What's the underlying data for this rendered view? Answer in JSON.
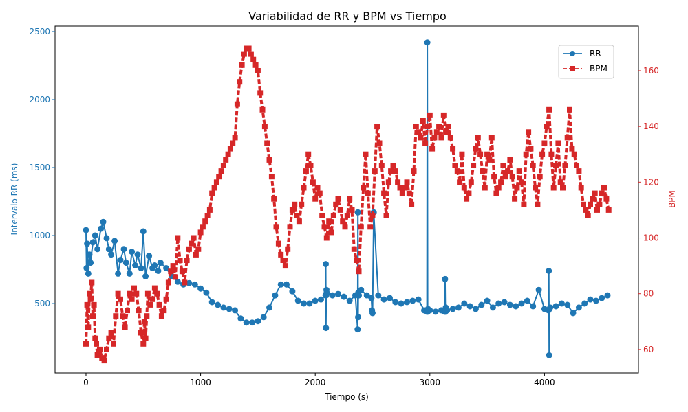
{
  "chart_data": {
    "type": "line",
    "title": "Variabilidad de RR y BPM vs Tiempo",
    "xlabel": "Tiempo (s)",
    "ylabel_left": "Intervalo RR (ms)",
    "ylabel_right": "BPM",
    "xlim": [
      -270,
      4820
    ],
    "ylim_left": [
      -10,
      2540
    ],
    "ylim_right": [
      51.6,
      176
    ],
    "x_ticks": [
      0,
      1000,
      2000,
      3000,
      4000
    ],
    "y_ticks_left": [
      500,
      1000,
      1500,
      2000,
      2500
    ],
    "y_ticks_right": [
      60,
      80,
      100,
      120,
      140,
      160
    ],
    "legend_position": "top-right",
    "grid": false,
    "colors": {
      "rr": "#1f77b4",
      "bpm": "#d62728",
      "text": "#000000"
    },
    "series": [
      {
        "name": "RR",
        "axis": "left",
        "marker": "circle",
        "linestyle": "solid",
        "x": [
          0,
          5,
          10,
          20,
          30,
          40,
          60,
          80,
          100,
          130,
          150,
          180,
          200,
          220,
          250,
          280,
          300,
          330,
          350,
          380,
          400,
          430,
          450,
          480,
          500,
          520,
          550,
          580,
          600,
          630,
          650,
          700,
          750,
          800,
          850,
          900,
          950,
          1000,
          1050,
          1100,
          1150,
          1200,
          1250,
          1300,
          1350,
          1400,
          1450,
          1500,
          1550,
          1600,
          1650,
          1700,
          1750,
          1800,
          1850,
          1900,
          1950,
          2000,
          2050,
          2090,
          2092,
          2094,
          2096,
          2098,
          2100,
          2150,
          2200,
          2250,
          2300,
          2350,
          2370,
          2372,
          2374,
          2376,
          2380,
          2400,
          2450,
          2490,
          2495,
          2500,
          2510,
          2550,
          2600,
          2650,
          2700,
          2750,
          2800,
          2850,
          2900,
          2950,
          2975,
          2978,
          2981,
          2984,
          3000,
          3050,
          3100,
          3130,
          3133,
          3136,
          3139,
          3150,
          3200,
          3250,
          3300,
          3350,
          3400,
          3450,
          3500,
          3550,
          3600,
          3650,
          3700,
          3750,
          3800,
          3850,
          3900,
          3950,
          4000,
          4035,
          4038,
          4041,
          4044,
          4050,
          4100,
          4150,
          4200,
          4250,
          4300,
          4350,
          4400,
          4450,
          4500,
          4550
        ],
        "y": [
          1040,
          760,
          940,
          720,
          860,
          800,
          950,
          1000,
          900,
          1050,
          1100,
          980,
          900,
          860,
          960,
          720,
          820,
          900,
          800,
          720,
          880,
          780,
          860,
          760,
          1030,
          700,
          850,
          760,
          780,
          740,
          800,
          760,
          700,
          660,
          640,
          650,
          640,
          610,
          580,
          510,
          490,
          470,
          460,
          450,
          390,
          360,
          360,
          370,
          400,
          470,
          560,
          640,
          640,
          590,
          520,
          500,
          500,
          520,
          530,
          560,
          790,
          320,
          560,
          600,
          580,
          560,
          570,
          550,
          520,
          560,
          310,
          1170,
          400,
          580,
          560,
          600,
          560,
          540,
          450,
          430,
          1170,
          560,
          530,
          540,
          510,
          500,
          510,
          520,
          530,
          450,
          440,
          2420,
          440,
          460,
          450,
          440,
          450,
          440,
          680,
          440,
          470,
          450,
          460,
          470,
          500,
          480,
          460,
          490,
          520,
          470,
          500,
          510,
          490,
          480,
          500,
          520,
          480,
          600,
          460,
          450,
          740,
          120,
          460,
          470,
          480,
          500,
          490,
          430,
          470,
          500,
          530,
          520,
          540,
          560
        ]
      },
      {
        "name": "BPM",
        "axis": "right",
        "marker": "square",
        "linestyle": "dashed",
        "x": [
          0,
          10,
          20,
          30,
          40,
          50,
          60,
          70,
          80,
          90,
          100,
          120,
          140,
          160,
          180,
          200,
          220,
          240,
          260,
          280,
          300,
          320,
          340,
          360,
          380,
          400,
          420,
          440,
          460,
          480,
          500,
          510,
          520,
          530,
          540,
          560,
          580,
          600,
          620,
          640,
          660,
          680,
          700,
          720,
          740,
          760,
          780,
          800,
          820,
          840,
          860,
          880,
          900,
          920,
          940,
          960,
          980,
          1000,
          1020,
          1040,
          1060,
          1080,
          1100,
          1120,
          1140,
          1160,
          1180,
          1200,
          1220,
          1240,
          1260,
          1280,
          1300,
          1320,
          1340,
          1360,
          1380,
          1400,
          1420,
          1440,
          1460,
          1480,
          1500,
          1520,
          1540,
          1560,
          1580,
          1600,
          1620,
          1640,
          1660,
          1680,
          1700,
          1720,
          1740,
          1760,
          1780,
          1800,
          1820,
          1840,
          1860,
          1880,
          1900,
          1920,
          1940,
          1960,
          1980,
          2000,
          2020,
          2040,
          2060,
          2080,
          2100,
          2120,
          2140,
          2160,
          2180,
          2200,
          2220,
          2240,
          2260,
          2280,
          2300,
          2320,
          2340,
          2360,
          2380,
          2400,
          2420,
          2440,
          2460,
          2480,
          2500,
          2520,
          2540,
          2560,
          2580,
          2600,
          2620,
          2640,
          2660,
          2680,
          2700,
          2720,
          2740,
          2760,
          2780,
          2800,
          2820,
          2840,
          2860,
          2880,
          2900,
          2920,
          2940,
          2960,
          2980,
          3000,
          3020,
          3040,
          3060,
          3080,
          3100,
          3120,
          3140,
          3160,
          3180,
          3200,
          3220,
          3240,
          3260,
          3280,
          3300,
          3320,
          3340,
          3360,
          3380,
          3400,
          3420,
          3440,
          3460,
          3480,
          3500,
          3520,
          3540,
          3560,
          3580,
          3600,
          3620,
          3640,
          3660,
          3680,
          3700,
          3720,
          3740,
          3760,
          3780,
          3800,
          3820,
          3840,
          3860,
          3880,
          3900,
          3920,
          3940,
          3960,
          3980,
          4000,
          4020,
          4040,
          4060,
          4080,
          4100,
          4120,
          4140,
          4160,
          4180,
          4200,
          4220,
          4240,
          4260,
          4280,
          4300,
          4320,
          4340,
          4360,
          4380,
          4400,
          4420,
          4440,
          4460,
          4480,
          4500,
          4520,
          4540,
          4560
        ],
        "y": [
          62,
          76,
          68,
          80,
          78,
          84,
          72,
          76,
          64,
          62,
          58,
          60,
          57,
          56,
          60,
          64,
          66,
          62,
          72,
          80,
          78,
          72,
          68,
          74,
          80,
          78,
          82,
          80,
          74,
          66,
          62,
          70,
          64,
          72,
          80,
          76,
          78,
          82,
          80,
          76,
          72,
          74,
          78,
          84,
          88,
          90,
          86,
          100,
          92,
          88,
          84,
          92,
          96,
          98,
          100,
          94,
          96,
          102,
          104,
          106,
          108,
          110,
          116,
          118,
          120,
          122,
          124,
          126,
          128,
          130,
          132,
          134,
          136,
          148,
          156,
          162,
          166,
          168,
          168,
          166,
          164,
          162,
          160,
          152,
          146,
          140,
          134,
          128,
          122,
          114,
          104,
          98,
          94,
          92,
          90,
          96,
          104,
          110,
          112,
          108,
          106,
          112,
          118,
          124,
          130,
          126,
          120,
          114,
          118,
          116,
          108,
          104,
          100,
          106,
          102,
          108,
          112,
          114,
          110,
          106,
          104,
          108,
          114,
          110,
          96,
          92,
          88,
          104,
          118,
          130,
          116,
          104,
          108,
          124,
          140,
          134,
          126,
          116,
          108,
          120,
          124,
          126,
          124,
          120,
          118,
          116,
          118,
          120,
          116,
          112,
          124,
          140,
          138,
          136,
          142,
          134,
          140,
          144,
          132,
          136,
          138,
          140,
          136,
          144,
          138,
          140,
          136,
          132,
          126,
          124,
          120,
          130,
          118,
          114,
          116,
          120,
          126,
          132,
          136,
          130,
          124,
          118,
          130,
          128,
          136,
          122,
          116,
          118,
          120,
          126,
          122,
          124,
          128,
          122,
          114,
          118,
          124,
          120,
          112,
          130,
          138,
          132,
          126,
          118,
          112,
          122,
          130,
          134,
          140,
          146,
          130,
          118,
          126,
          134,
          120,
          118,
          126,
          136,
          146,
          132,
          130,
          126,
          124,
          118,
          112,
          110,
          108,
          112,
          114,
          116,
          110,
          112,
          116,
          118,
          114,
          110
        ]
      }
    ]
  }
}
